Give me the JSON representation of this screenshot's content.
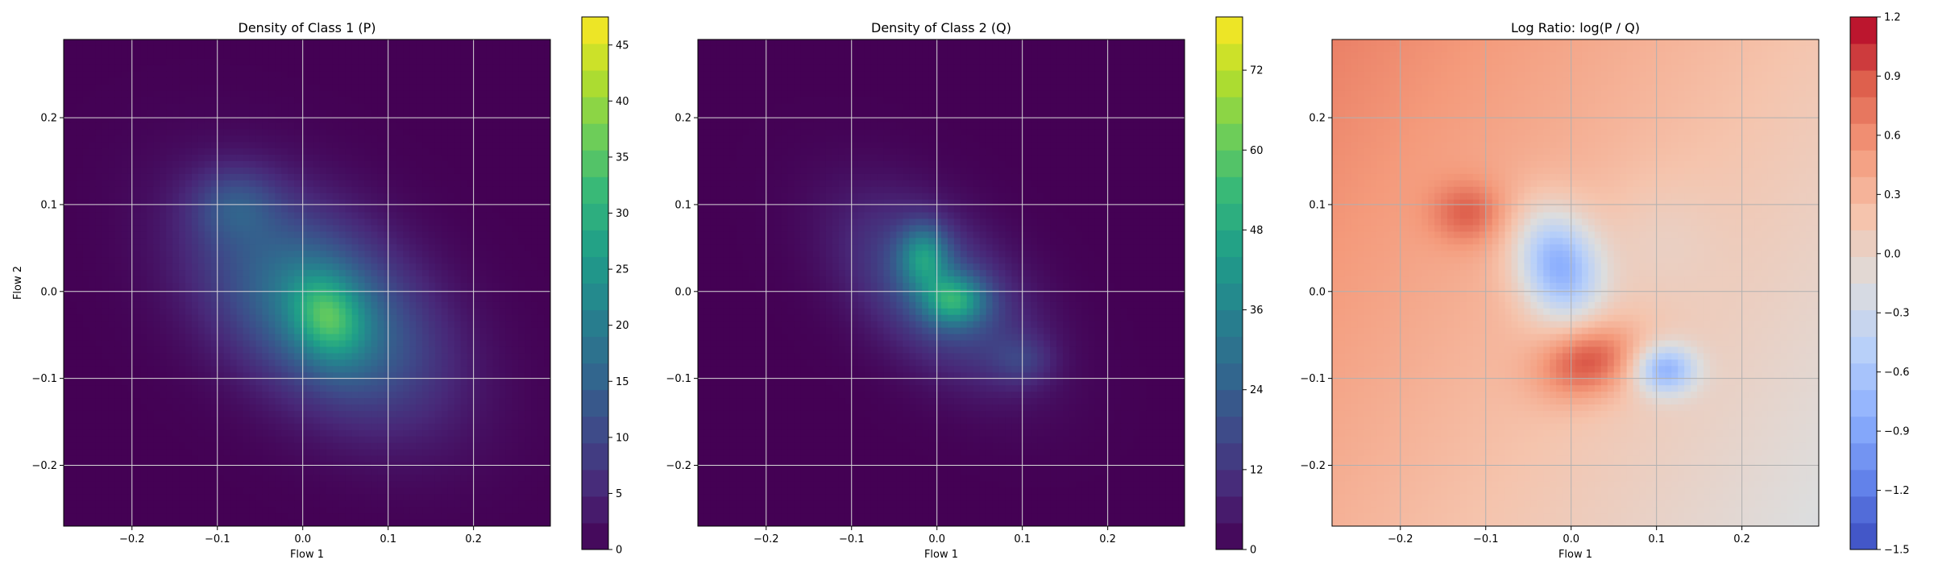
{
  "chart_data": [
    {
      "type": "heatmap",
      "title": "Density of Class 1 (P)",
      "xlabel": "Flow 1",
      "ylabel": "Flow 2",
      "xlim": [
        -0.28,
        0.29
      ],
      "ylim": [
        -0.27,
        0.29
      ],
      "grid": true,
      "xticks": [
        -0.2,
        -0.1,
        0.0,
        0.1,
        0.2
      ],
      "xtick_labels": [
        "−0.2",
        "−0.1",
        "0.0",
        "0.1",
        "0.2"
      ],
      "yticks": [
        -0.2,
        -0.1,
        0.0,
        0.1,
        0.2
      ],
      "ytick_labels": [
        "−0.2",
        "−0.1",
        "0.0",
        "0.1",
        "0.2"
      ],
      "colormap": "viridis",
      "color_min": 0,
      "color_max": 47.5,
      "colorbar_ticks": [
        0,
        5,
        10,
        15,
        20,
        25,
        30,
        35,
        40,
        45
      ],
      "colorbar_tick_labels": [
        "0",
        "5",
        "10",
        "15",
        "20",
        "25",
        "30",
        "35",
        "40",
        "45"
      ],
      "components": [
        {
          "cx": 0.02,
          "cy": -0.02,
          "sx": 0.095,
          "sy": 0.085,
          "rho": -0.45,
          "w": 20
        },
        {
          "cx": 0.03,
          "cy": -0.03,
          "sx": 0.03,
          "sy": 0.035,
          "rho": -0.2,
          "w": 16
        },
        {
          "cx": -0.08,
          "cy": 0.1,
          "sx": 0.035,
          "sy": 0.03,
          "rho": 0,
          "w": 8
        }
      ]
    },
    {
      "type": "heatmap",
      "title": "Density of Class 2 (Q)",
      "xlabel": "Flow 1",
      "ylabel": "",
      "xlim": [
        -0.28,
        0.29
      ],
      "ylim": [
        -0.27,
        0.29
      ],
      "grid": true,
      "xticks": [
        -0.2,
        -0.1,
        0.0,
        0.1,
        0.2
      ],
      "xtick_labels": [
        "−0.2",
        "−0.1",
        "0.0",
        "0.1",
        "0.2"
      ],
      "yticks": [
        -0.2,
        -0.1,
        0.0,
        0.1,
        0.2
      ],
      "ytick_labels": [
        "−0.2",
        "−0.1",
        "0.0",
        "0.1",
        "0.2"
      ],
      "colormap": "viridis",
      "color_min": 0,
      "color_max": 80,
      "colorbar_ticks": [
        0,
        12,
        24,
        36,
        48,
        60,
        72
      ],
      "colorbar_tick_labels": [
        "0",
        "12",
        "24",
        "36",
        "48",
        "60",
        "72"
      ],
      "components": [
        {
          "cx": 0.0,
          "cy": 0.0,
          "sx": 0.075,
          "sy": 0.07,
          "rho": -0.5,
          "w": 22
        },
        {
          "cx": -0.015,
          "cy": 0.04,
          "sx": 0.02,
          "sy": 0.025,
          "rho": 0,
          "w": 28
        },
        {
          "cx": 0.02,
          "cy": -0.01,
          "sx": 0.025,
          "sy": 0.02,
          "rho": 0,
          "w": 32
        },
        {
          "cx": 0.1,
          "cy": -0.08,
          "sx": 0.025,
          "sy": 0.02,
          "rho": 0,
          "w": 9
        }
      ]
    },
    {
      "type": "heatmap",
      "title": "Log Ratio: log(P / Q)",
      "xlabel": "Flow 1",
      "ylabel": "",
      "xlim": [
        -0.28,
        0.29
      ],
      "ylim": [
        -0.27,
        0.29
      ],
      "grid": true,
      "xticks": [
        -0.2,
        -0.1,
        0.0,
        0.1,
        0.2
      ],
      "xtick_labels": [
        "−0.2",
        "−0.1",
        "0.0",
        "0.1",
        "0.2"
      ],
      "yticks": [
        -0.2,
        -0.1,
        0.0,
        0.1,
        0.2
      ],
      "ytick_labels": [
        "−0.2",
        "−0.1",
        "0.0",
        "0.1",
        "0.2"
      ],
      "colormap": "coolwarm",
      "color_min": -1.5,
      "color_max": 1.2,
      "colorbar_ticks": [
        -1.5,
        -1.2,
        -0.9,
        -0.6,
        -0.3,
        0.0,
        0.3,
        0.6,
        0.9,
        1.2
      ],
      "colorbar_tick_labels": [
        "−1.5",
        "−1.2",
        "−0.9",
        "−0.6",
        "−0.3",
        "0.0",
        "0.3",
        "0.6",
        "0.9",
        "1.2"
      ],
      "base_value": 0.25,
      "gradient": [
        -0.9,
        0.6
      ],
      "components": [
        {
          "cx": -0.015,
          "cy": 0.03,
          "sx": 0.035,
          "sy": 0.045,
          "rho": -0.2,
          "w": -1.1
        },
        {
          "cx": 0.02,
          "cy": -0.08,
          "sx": 0.04,
          "sy": 0.03,
          "rho": 0.2,
          "w": 0.75
        },
        {
          "cx": 0.11,
          "cy": -0.09,
          "sx": 0.025,
          "sy": 0.02,
          "rho": 0,
          "w": -0.9
        },
        {
          "cx": -0.12,
          "cy": 0.09,
          "sx": 0.03,
          "sy": 0.025,
          "rho": 0,
          "w": 0.45
        },
        {
          "cx": 0.1,
          "cy": 0.06,
          "sx": 0.05,
          "sy": 0.05,
          "rho": 0,
          "w": -0.15
        }
      ]
    }
  ]
}
